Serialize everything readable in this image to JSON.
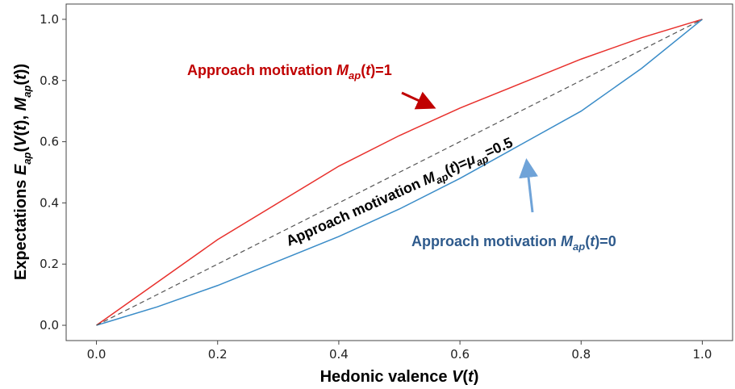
{
  "chart_data": {
    "type": "line",
    "x_label": [
      "Hedonic valence ",
      "V",
      "(",
      "t",
      ")"
    ],
    "y_label": [
      "Expectations ",
      "E",
      "ap",
      "(",
      "V",
      "(",
      "t",
      "), ",
      "M",
      "ap",
      "(",
      "t",
      "))"
    ],
    "x": [
      0,
      0.1,
      0.2,
      0.3,
      0.4,
      0.5,
      0.6,
      0.7,
      0.8,
      0.9,
      1
    ],
    "series": [
      {
        "color": "#e8302c",
        "linestyle": "solid",
        "values": [
          0,
          0.14,
          0.28,
          0.4,
          0.52,
          0.62,
          0.71,
          0.79,
          0.87,
          0.94,
          1
        ]
      },
      {
        "color": "#3a8cc8",
        "linestyle": "solid",
        "values": [
          0,
          0.06,
          0.13,
          0.21,
          0.29,
          0.38,
          0.48,
          0.59,
          0.7,
          0.84,
          1
        ]
      },
      {
        "color": "#555555",
        "linestyle": "dashed",
        "values": [
          0,
          0.1,
          0.2,
          0.3,
          0.4,
          0.5,
          0.6,
          0.7,
          0.8,
          0.9,
          1
        ]
      }
    ],
    "annotations": [
      {
        "parts": [
          "Approach motivation ",
          "M",
          "ap",
          "(",
          "t",
          ")=1"
        ],
        "color": "#c00000"
      },
      {
        "parts": [
          "Approach motivation ",
          "M",
          "ap",
          "(",
          "t",
          ")=",
          "μ",
          "ap",
          "=0.5"
        ],
        "color": "#000000"
      },
      {
        "parts": [
          "Approach motivation ",
          "M",
          "ap",
          "(",
          "t",
          ")=0"
        ],
        "color": "#2e5a8c"
      }
    ],
    "xlim": [
      -0.05,
      1.05
    ],
    "ylim": [
      -0.05,
      1.05
    ],
    "xticks": [
      {
        "value": 0,
        "label": "0.0"
      },
      0.2,
      0.4,
      0.6,
      0.8,
      {
        "value": 1,
        "label": "1.0"
      }
    ],
    "yticks": [
      {
        "value": 0,
        "label": "0.0"
      },
      0.2,
      0.4,
      0.6,
      0.8,
      {
        "value": 1,
        "label": "1.0"
      }
    ]
  }
}
